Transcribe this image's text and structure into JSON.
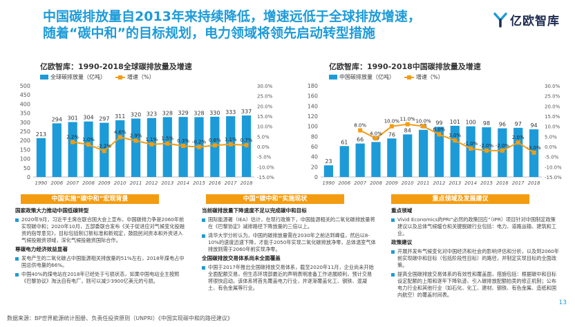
{
  "title": {
    "line1": "中国碳排放量自2013年来持续降低，增速远低于全球排放增速，",
    "line2": "随着“碳中和”的目标规划，电力领域将领先启动转型措施"
  },
  "logo": {
    "text": "亿欧智库",
    "icon": "yiou-logo-icon",
    "color": "#1d9bd8"
  },
  "colors": {
    "bar": "#1d9bd8",
    "line": "#f39c12",
    "header": "#f39c12",
    "title": "#1d9bd8"
  },
  "chart_data": [
    {
      "type": "bar",
      "title": "亿欧智库：1990-2018全球碳排放量及增速",
      "categories": [
        "1990",
        "2006",
        "2007",
        "2008",
        "2009",
        "2010",
        "2011",
        "2012",
        "2013",
        "2014",
        "2015",
        "2016",
        "2017",
        "2018"
      ],
      "series": [
        {
          "name": "全球碳排放量（亿吨）",
          "type": "bar",
          "values": [
            213,
            294,
            301,
            304,
            297,
            311,
            320,
            323,
            328,
            329,
            328,
            330,
            333,
            337
          ]
        },
        {
          "name": "增速（%）",
          "type": "line",
          "values": [
            null,
            null,
            2.2,
            1.0,
            -2.2,
            4.6,
            2.9,
            1.1,
            1.5,
            0.3,
            -0.2,
            0.6,
            1.1,
            0.7
          ],
          "labels": [
            "",
            "",
            "2.2%",
            "1.0%",
            "-2.2%",
            "4.6%",
            "2.9%",
            "1.1%",
            "1.5%",
            "0.3%",
            "-0.2%",
            "0.6%",
            "1.1%",
            "0.7%"
          ]
        }
      ],
      "y_left": {
        "ticks": [
          0,
          50,
          100,
          150,
          200,
          250,
          300,
          350,
          400,
          450,
          500
        ],
        "lim": [
          0,
          500
        ]
      },
      "y_right": {
        "ticks": [
          "-15.0%",
          "-10.0%",
          "-5.0%",
          "0.0%",
          "5.0%",
          "10.0%",
          "15.0%",
          "20.0%",
          "25.0%",
          "30.0%"
        ],
        "lim": [
          -15,
          30
        ]
      },
      "legend": "top-left"
    },
    {
      "type": "bar",
      "title": "亿欧智库：1990-2018中国碳排放量及增速",
      "categories": [
        "1990",
        "2006",
        "2007",
        "2008",
        "2009",
        "2010",
        "2011",
        "2012",
        "2013",
        "2014",
        "2015",
        "2016",
        "2017",
        "2018"
      ],
      "series": [
        {
          "name": "中国碳排放量（亿吨）",
          "type": "bar",
          "values": [
            23,
            61,
            66,
            69,
            76,
            84,
            93,
            99,
            101,
            100,
            98,
            96,
            97,
            94
          ]
        },
        {
          "name": "增速（%）",
          "type": "line",
          "values": [
            null,
            null,
            8.0,
            4.0,
            10.0,
            11.0,
            10.0,
            6.0,
            3.0,
            -1.0,
            -2.0,
            -2.0,
            2.0,
            -3.0
          ],
          "labels": [
            "",
            "",
            "8.0%",
            "4.0%",
            "10.0%",
            "11.0%",
            "10.0%",
            "6.0%",
            "3.0%",
            "-1.0%",
            "-2.0%",
            "-2.0%",
            "2.0%",
            "-3.0%"
          ]
        }
      ],
      "y_left": {
        "ticks": [
          0,
          20,
          40,
          60,
          80,
          100,
          120,
          140,
          160,
          180
        ],
        "lim": [
          0,
          180
        ]
      },
      "y_right": {
        "ticks": [
          "-15.0%",
          "-10.0%",
          "-5.0%",
          "0.0%",
          "5.0%",
          "10.0%",
          "15.0%",
          "20.0%",
          "25.0%",
          "30.0%"
        ],
        "lim": [
          -15,
          30
        ]
      },
      "legend": "top-left"
    }
  ],
  "sections": [
    {
      "header": "中国实施“碳中和”宏观背景",
      "groups": [
        {
          "heading": "国家政策大力推动中国低碳转型",
          "bullets": [
            "2020年9月，习近平主席在联合国大会上宣布，中国碳排力争是2060年前实现碳中和；2020年10月，五部委联合发布《关于促进应对气候变化投融资的指导意见》，目标包括制订新标准和新规定，鼓励民间资本和外资进入气候投融资领域，深化气候投融资国际合作。"
          ]
        },
        {
          "heading": "尊碳电力经济效益显著",
          "bullets": [
            "发电产生的二氧化碳占中国能源相关排放量的51%左右，2018年煤电占中国总供电量的66%。",
            "中国40%的煤电站在2018年已经处于亏损状态，如果中国电站业主按照《巴黎协议》淘汰自有电厂，则可以减少3900亿美元的亏损。"
          ]
        }
      ]
    },
    {
      "header": "中国“碳中和”实施现状",
      "groups": [
        {
          "heading": "当前碳排放量下降速度不足以完成碳中和目标",
          "bullets": [
            "国际能源署（IEA）估计，在现行政策下，中国能源相关的二氧化碳排放量将在《巴黎协定》减排路径下降放量的三倍以上。",
            "清华大学分析认为，中国的碳排放量需在2030年之前达到峰值，然后以8-10%的速度迅速下降，才能于2050年实现二氧化碳排放净零，总体温室气体排放则需于2060年前实现净零。"
          ]
        },
        {
          "heading": "全国碳排放交易体系尚未全面覆盖",
          "bullets": [
            "中国于2017年推出全国碳排放交易体系，截至2020年11月，企业尚未开始全面配额交易，但生态环境部最近的声明表明准备工作进展顺利，预计交易将很快启动。该体系将首先覆盖电力行业，并逐渐覆盖化工、钢铁、混凝土、有色金属等行业。"
          ]
        }
      ]
    },
    {
      "header": "重点领域及发展建议",
      "groups": [
        {
          "heading": "重点领域",
          "bullets": [
            "Vivid Economics的PRI“必然的政策回应”（IPR）项目针对中国制定政策建议以及总体气候缓仓和关键脱碳行业包括：电力、道路运输、建筑和工业。"
          ]
        },
        {
          "heading": "政策建议",
          "bullets": [
            "开展并发布气候变化对中国经济和社会的影响评估和分析，以及到2060年前实现碳中和目标（包括阶段性目标）的路径，并制定实现目标的全面政策。",
            "提高全国碳排放交易体系的有效性和覆盖面，措施包括：根据碳中和目标设定配额的上限和逐年下降轨迹、引入碳排放配额拍卖的修正机制；公布电力行业和其他行业（如石化、化工、建材、钢铁、有色金属、造纸和国内航空）的覆盖时间表。"
          ]
        }
      ]
    }
  ],
  "source": "数据来源：BP世界能源统计图册、负责任投资原则（UNPRI）《中国实现碳中和的路径建议》",
  "page_number": "13"
}
